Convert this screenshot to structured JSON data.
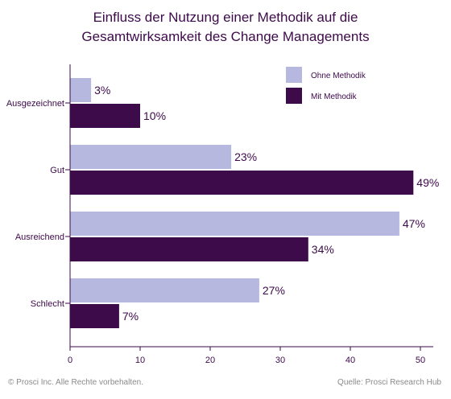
{
  "colors": {
    "ohne": "#b6b8df",
    "mit": "#3d0a4a",
    "title": "#3d0a4a",
    "text": "#3d0a4a",
    "axis": "#3d0a4a",
    "footer": "#8a8a8a"
  },
  "chart_data": {
    "type": "bar",
    "orientation": "horizontal",
    "title_lines": [
      "Einfluss der Nutzung einer Methodik auf die",
      "Gesamtwirksamkeit des Change Managements"
    ],
    "categories": [
      "Ausgezeichnet",
      "Gut",
      "Ausreichend",
      "Schlecht"
    ],
    "series": [
      {
        "name": "Ohne Methodik",
        "values": [
          3,
          23,
          47,
          27
        ],
        "labels": [
          "3%",
          "23%",
          "47%",
          "27%"
        ]
      },
      {
        "name": "Mit Methodik",
        "values": [
          10,
          49,
          34,
          7
        ],
        "labels": [
          "10%",
          "49%",
          "34%",
          "7%"
        ]
      }
    ],
    "xlim": [
      0,
      52
    ],
    "xticks": [
      "0",
      "10",
      "20",
      "30",
      "40",
      "50"
    ],
    "legend_position": "top-right",
    "grid": false
  },
  "footer": {
    "left": "© Prosci Inc. Alle Rechte vorbehalten.",
    "right": "Quelle: Prosci Research Hub"
  }
}
